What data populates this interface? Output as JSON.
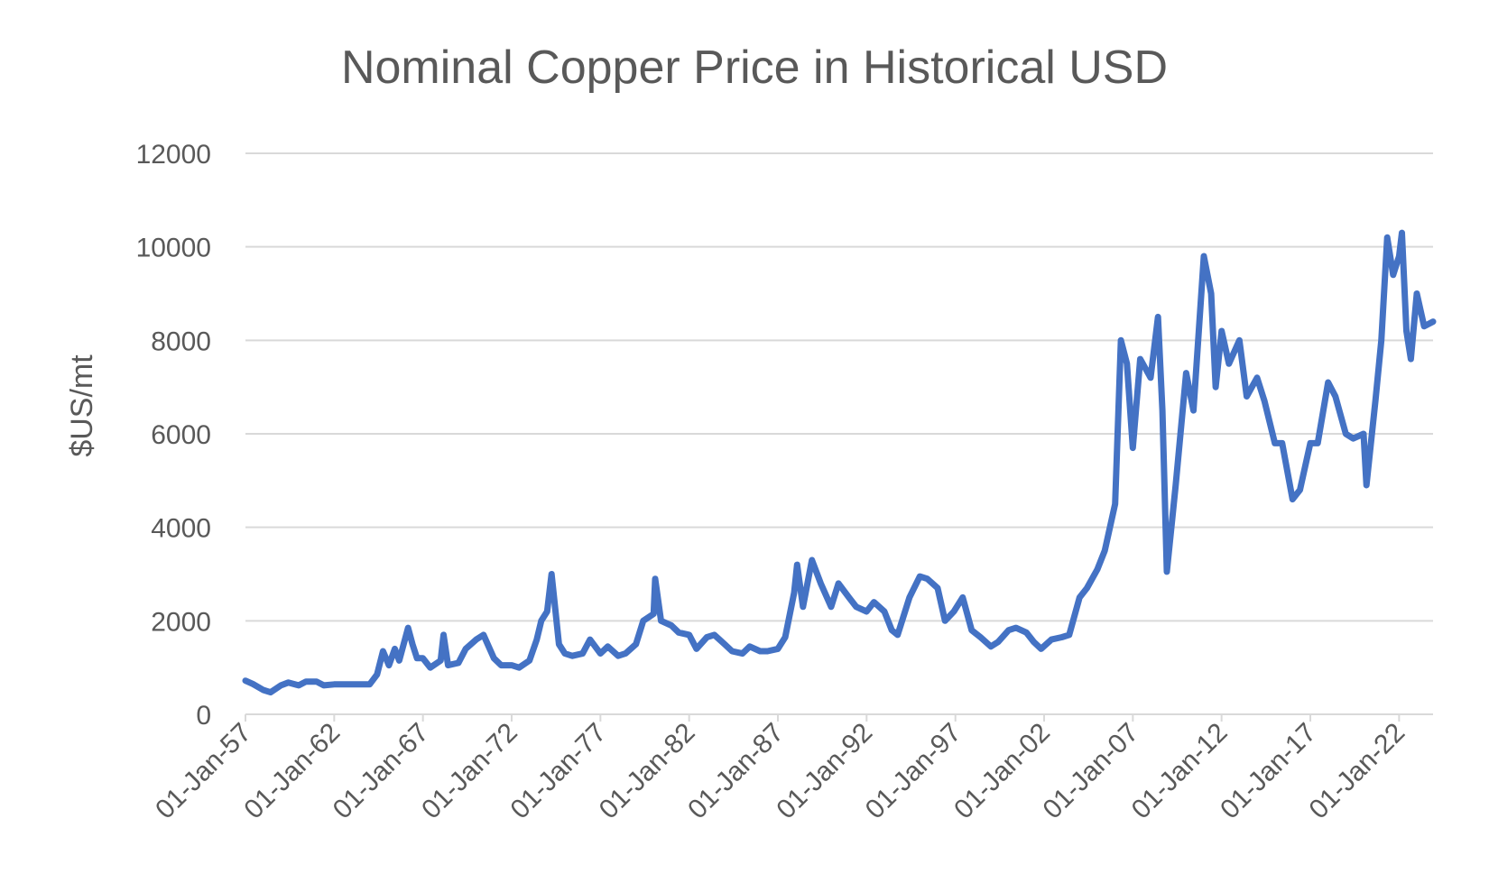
{
  "chart_data": {
    "type": "line",
    "title": "Nominal Copper Price in Historical USD",
    "xlabel": "",
    "ylabel": "$US/mt",
    "ylim": [
      0,
      12000
    ],
    "xlim": [
      "1957-01-01",
      "2023-12-01"
    ],
    "yticks": [
      0,
      2000,
      4000,
      6000,
      8000,
      10000,
      12000
    ],
    "ytick_labels": [
      "0",
      "2000",
      "4000",
      "6000",
      "8000",
      "10000",
      "12000"
    ],
    "xticks": [
      "1957-01-01",
      "1962-01-01",
      "1967-01-01",
      "1972-01-01",
      "1977-01-01",
      "1982-01-01",
      "1987-01-01",
      "1992-01-01",
      "1997-01-01",
      "2002-01-01",
      "2007-01-01",
      "2012-01-01",
      "2017-01-01",
      "2022-01-01"
    ],
    "xtick_labels": [
      "01-Jan-57",
      "01-Jan-62",
      "01-Jan-67",
      "01-Jan-72",
      "01-Jan-77",
      "01-Jan-82",
      "01-Jan-87",
      "01-Jan-92",
      "01-Jan-97",
      "01-Jan-02",
      "01-Jan-07",
      "01-Jan-12",
      "01-Jan-17",
      "01-Jan-22"
    ],
    "grid": true,
    "legend": "none",
    "series": [
      {
        "color": "#4472c4",
        "points": [
          [
            "1957-01-01",
            720
          ],
          [
            "1957-06-01",
            650
          ],
          [
            "1958-01-01",
            520
          ],
          [
            "1958-06-01",
            470
          ],
          [
            "1959-01-01",
            620
          ],
          [
            "1959-06-01",
            680
          ],
          [
            "1960-01-01",
            620
          ],
          [
            "1960-06-01",
            700
          ],
          [
            "1961-01-01",
            700
          ],
          [
            "1961-06-01",
            620
          ],
          [
            "1962-01-01",
            640
          ],
          [
            "1963-01-01",
            640
          ],
          [
            "1964-01-01",
            640
          ],
          [
            "1964-06-01",
            850
          ],
          [
            "1964-10-01",
            1350
          ],
          [
            "1965-02-01",
            1050
          ],
          [
            "1965-06-01",
            1400
          ],
          [
            "1965-09-01",
            1150
          ],
          [
            "1966-03-01",
            1850
          ],
          [
            "1966-06-01",
            1500
          ],
          [
            "1966-09-01",
            1200
          ],
          [
            "1967-01-01",
            1200
          ],
          [
            "1967-06-01",
            1000
          ],
          [
            "1968-01-01",
            1150
          ],
          [
            "1968-03-01",
            1700
          ],
          [
            "1968-06-01",
            1050
          ],
          [
            "1969-01-01",
            1100
          ],
          [
            "1969-06-01",
            1400
          ],
          [
            "1970-01-01",
            1600
          ],
          [
            "1970-06-01",
            1700
          ],
          [
            "1971-01-01",
            1200
          ],
          [
            "1971-06-01",
            1050
          ],
          [
            "1972-01-01",
            1050
          ],
          [
            "1972-06-01",
            1000
          ],
          [
            "1973-01-01",
            1150
          ],
          [
            "1973-06-01",
            1600
          ],
          [
            "1973-09-01",
            2000
          ],
          [
            "1974-01-01",
            2200
          ],
          [
            "1974-04-01",
            3000
          ],
          [
            "1974-06-01",
            2400
          ],
          [
            "1974-09-01",
            1500
          ],
          [
            "1975-01-01",
            1300
          ],
          [
            "1975-06-01",
            1250
          ],
          [
            "1976-01-01",
            1300
          ],
          [
            "1976-06-01",
            1600
          ],
          [
            "1977-01-01",
            1300
          ],
          [
            "1977-06-01",
            1450
          ],
          [
            "1978-01-01",
            1250
          ],
          [
            "1978-06-01",
            1300
          ],
          [
            "1979-01-01",
            1500
          ],
          [
            "1979-06-01",
            2000
          ],
          [
            "1980-01-01",
            2150
          ],
          [
            "1980-02-01",
            2900
          ],
          [
            "1980-06-01",
            2000
          ],
          [
            "1981-01-01",
            1900
          ],
          [
            "1981-06-01",
            1750
          ],
          [
            "1982-01-01",
            1700
          ],
          [
            "1982-06-01",
            1400
          ],
          [
            "1983-01-01",
            1650
          ],
          [
            "1983-06-01",
            1700
          ],
          [
            "1984-01-01",
            1500
          ],
          [
            "1984-06-01",
            1350
          ],
          [
            "1985-01-01",
            1300
          ],
          [
            "1985-06-01",
            1450
          ],
          [
            "1986-01-01",
            1350
          ],
          [
            "1986-06-01",
            1350
          ],
          [
            "1987-01-01",
            1400
          ],
          [
            "1987-06-01",
            1650
          ],
          [
            "1987-12-01",
            2600
          ],
          [
            "1988-02-01",
            3200
          ],
          [
            "1988-06-01",
            2300
          ],
          [
            "1988-12-01",
            3300
          ],
          [
            "1989-06-01",
            2800
          ],
          [
            "1990-01-01",
            2300
          ],
          [
            "1990-06-01",
            2800
          ],
          [
            "1991-01-01",
            2500
          ],
          [
            "1991-06-01",
            2300
          ],
          [
            "1992-01-01",
            2200
          ],
          [
            "1992-06-01",
            2400
          ],
          [
            "1993-01-01",
            2200
          ],
          [
            "1993-06-01",
            1800
          ],
          [
            "1993-10-01",
            1700
          ],
          [
            "1994-06-01",
            2500
          ],
          [
            "1995-01-01",
            2950
          ],
          [
            "1995-06-01",
            2900
          ],
          [
            "1996-01-01",
            2700
          ],
          [
            "1996-06-01",
            2000
          ],
          [
            "1996-12-01",
            2200
          ],
          [
            "1997-06-01",
            2500
          ],
          [
            "1997-12-01",
            1800
          ],
          [
            "1998-06-01",
            1650
          ],
          [
            "1999-01-01",
            1450
          ],
          [
            "1999-06-01",
            1550
          ],
          [
            "2000-01-01",
            1800
          ],
          [
            "2000-06-01",
            1850
          ],
          [
            "2001-01-01",
            1750
          ],
          [
            "2001-06-01",
            1550
          ],
          [
            "2001-11-01",
            1400
          ],
          [
            "2002-06-01",
            1600
          ],
          [
            "2003-01-01",
            1650
          ],
          [
            "2003-06-01",
            1700
          ],
          [
            "2004-01-01",
            2500
          ],
          [
            "2004-06-01",
            2700
          ],
          [
            "2005-01-01",
            3100
          ],
          [
            "2005-06-01",
            3500
          ],
          [
            "2006-01-01",
            4500
          ],
          [
            "2006-05-01",
            8000
          ],
          [
            "2006-09-01",
            7500
          ],
          [
            "2007-01-01",
            5700
          ],
          [
            "2007-06-01",
            7600
          ],
          [
            "2008-01-01",
            7200
          ],
          [
            "2008-06-01",
            8500
          ],
          [
            "2008-09-01",
            6500
          ],
          [
            "2008-12-01",
            3050
          ],
          [
            "2009-06-01",
            4900
          ],
          [
            "2010-01-01",
            7300
          ],
          [
            "2010-06-01",
            6500
          ],
          [
            "2011-01-01",
            9800
          ],
          [
            "2011-06-01",
            9000
          ],
          [
            "2011-09-01",
            7000
          ],
          [
            "2012-01-01",
            8200
          ],
          [
            "2012-06-01",
            7500
          ],
          [
            "2013-01-01",
            8000
          ],
          [
            "2013-06-01",
            6800
          ],
          [
            "2014-01-01",
            7200
          ],
          [
            "2014-06-01",
            6700
          ],
          [
            "2015-01-01",
            5800
          ],
          [
            "2015-06-01",
            5800
          ],
          [
            "2016-01-01",
            4600
          ],
          [
            "2016-06-01",
            4800
          ],
          [
            "2017-01-01",
            5800
          ],
          [
            "2017-06-01",
            5800
          ],
          [
            "2018-01-01",
            7100
          ],
          [
            "2018-06-01",
            6800
          ],
          [
            "2019-01-01",
            6000
          ],
          [
            "2019-06-01",
            5900
          ],
          [
            "2020-01-01",
            6000
          ],
          [
            "2020-03-01",
            4900
          ],
          [
            "2020-09-01",
            6700
          ],
          [
            "2021-01-01",
            8000
          ],
          [
            "2021-05-01",
            10200
          ],
          [
            "2021-09-01",
            9400
          ],
          [
            "2022-01-01",
            9800
          ],
          [
            "2022-03-01",
            10300
          ],
          [
            "2022-06-01",
            8200
          ],
          [
            "2022-09-01",
            7600
          ],
          [
            "2023-01-01",
            9000
          ],
          [
            "2023-06-01",
            8300
          ],
          [
            "2023-12-01",
            8400
          ]
        ]
      }
    ]
  }
}
